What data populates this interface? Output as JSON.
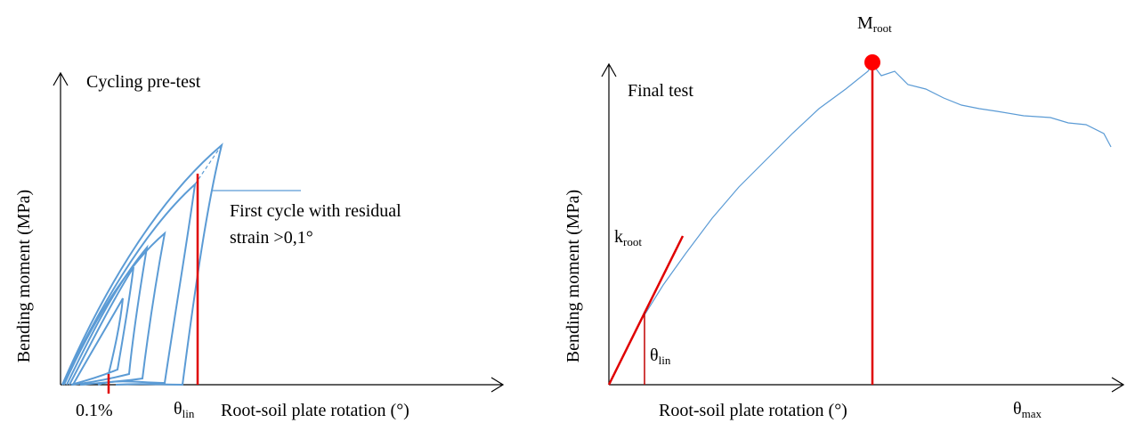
{
  "panels": [
    {
      "title": "Cycling pre-test",
      "y_label": "Bending moment (MPa)",
      "x_label": "Root-soil plate rotation (°)",
      "annotation": [
        "First cycle  with residual",
        "strain >0,1°"
      ],
      "tick_label": "0.1%",
      "theta_lin": {
        "base": "θ",
        "sub": "lin"
      }
    },
    {
      "title": "Final test",
      "y_label": "Bending moment (MPa)",
      "x_label": "Root-soil plate rotation (°)",
      "m_root": {
        "base": "M",
        "sub": "root"
      },
      "k_root": {
        "base": "k",
        "sub": "root"
      },
      "theta_lin": {
        "base": "θ",
        "sub": "lin"
      },
      "theta_max": {
        "base": "θ",
        "sub": "max"
      }
    }
  ]
}
